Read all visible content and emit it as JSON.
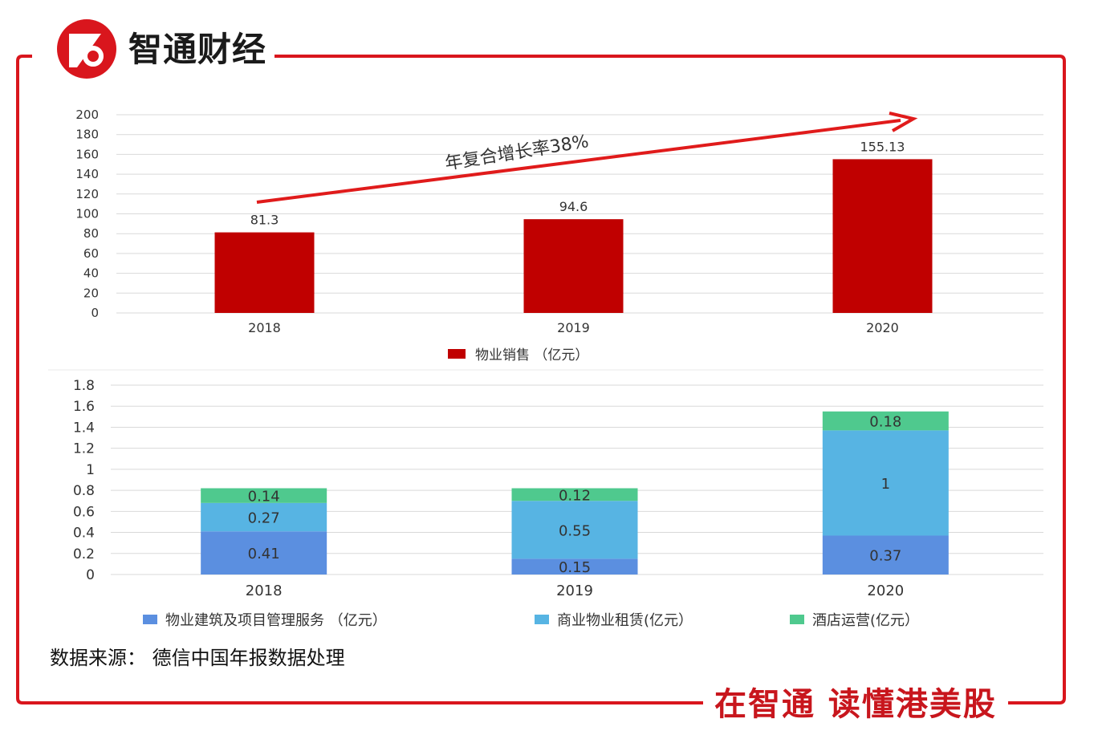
{
  "brand": {
    "name": "智通财经",
    "slogan": "在智通  读懂港美股"
  },
  "source": "数据来源：  德信中国年报数据处理",
  "colors": {
    "frame": "#d9161d",
    "bar_sales": "#c00000",
    "construction": "#5b8fe0",
    "leasing": "#57b4e3",
    "hotel": "#4fc98e"
  },
  "chart_data": [
    {
      "type": "bar",
      "categories": [
        "2018",
        "2019",
        "2020"
      ],
      "series": [
        {
          "name": "物业销售 （亿元）",
          "values": [
            81.3,
            94.6,
            155.13
          ]
        }
      ],
      "data_labels": [
        "81.3",
        "94.6",
        "155.13"
      ],
      "ylim": [
        0,
        200
      ],
      "yticks": [
        "0",
        "20",
        "40",
        "60",
        "80",
        "100",
        "120",
        "140",
        "160",
        "180",
        "200"
      ],
      "grid": true,
      "legend": "bottom",
      "annotation": "年复合增长率38%"
    },
    {
      "type": "bar",
      "stacked": true,
      "categories": [
        "2018",
        "2019",
        "2020"
      ],
      "series": [
        {
          "name": "物业建筑及项目管理服务 （亿元）",
          "values": [
            0.41,
            0.15,
            0.37
          ],
          "labels": [
            "0.41",
            "0.15",
            "0.37"
          ]
        },
        {
          "name": "商业物业租赁(亿元）",
          "values": [
            0.27,
            0.55,
            1
          ],
          "labels": [
            "0.27",
            "0.55",
            "1"
          ]
        },
        {
          "name": "酒店运营(亿元）",
          "values": [
            0.14,
            0.12,
            0.18
          ],
          "labels": [
            "0.14",
            "0.12",
            "0.18"
          ]
        }
      ],
      "ylim": [
        0,
        1.8
      ],
      "yticks": [
        "0",
        "0.2",
        "0.4",
        "0.6",
        "0.8",
        "1",
        "1.2",
        "1.4",
        "1.6",
        "1.8"
      ],
      "grid": true,
      "legend": "bottom"
    }
  ]
}
